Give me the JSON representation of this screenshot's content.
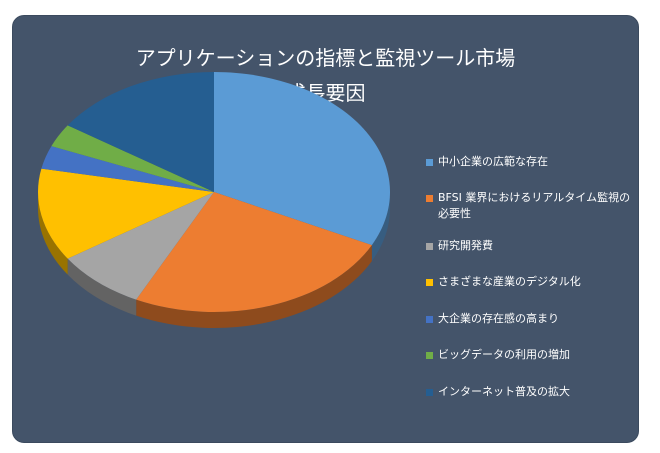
{
  "chart_data": {
    "type": "pie",
    "title_lines": [
      "アプリケーションの指標と監視ツール市場",
      "成長要因"
    ],
    "labels": [
      "中小企業の広範な存在",
      "BFSI 業界におけるリアルタイム監視の必要性",
      "研究開発費",
      "さまざまな産業のデジタル化",
      "大企業の存在感の高まり",
      "ビッグデータの利用の増加",
      "インターネット普及の拡大"
    ],
    "values": [
      31,
      24,
      8,
      12,
      3,
      3,
      15
    ],
    "colors": [
      "#5b9bd5",
      "#ed7d31",
      "#a5a5a5",
      "#ffc000",
      "#4472c4",
      "#70ad47",
      "#255e91"
    ],
    "legend_position": "right"
  },
  "card_color": "#44546a"
}
